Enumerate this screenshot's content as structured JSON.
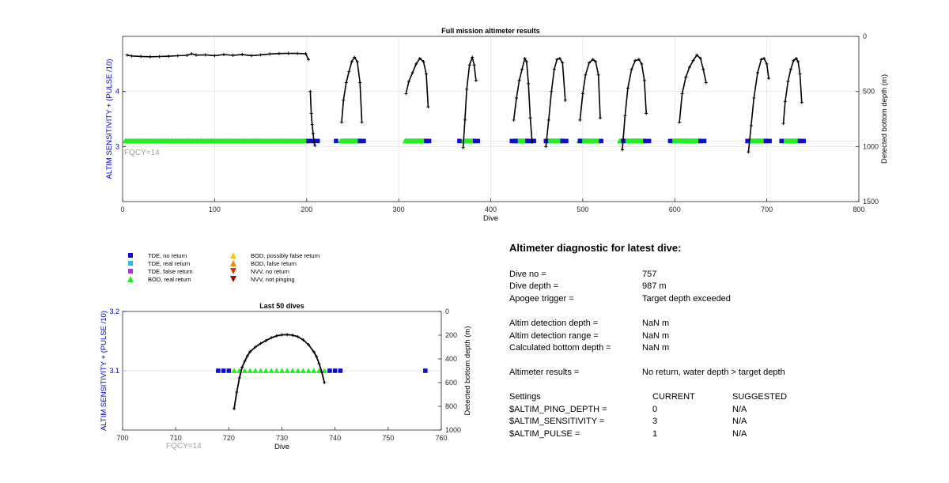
{
  "colors": {
    "tde_no_return": "#1010c8",
    "tde_real_return": "#19c9c9",
    "tde_false_return": "#a136d9",
    "bod_real_return": "#22ee22",
    "bod_possibly_false": "#f7c21b",
    "bod_false": "#f08c10",
    "nvv_no_return": "#e03010",
    "nvv_not_pinging": "#8b1010",
    "depth_line": "#000000",
    "left_axis": "#0000c0",
    "fqcy_text": "#a0a0a0"
  },
  "chart_data": [
    {
      "type": "line",
      "title": "Full mission altimeter results",
      "xlabel": "Dive",
      "ylabel_left": "ALTIM SENSITIVITY + (PULSE /10)",
      "ylabel_right": "Detected bottom depth (m)",
      "xlim": [
        0,
        800
      ],
      "ylim_left": [
        2,
        5
      ],
      "ylim_right": [
        1500,
        0
      ],
      "xticks": [
        "0",
        "100",
        "200",
        "300",
        "400",
        "500",
        "600",
        "700",
        "800"
      ],
      "yticks_left": [
        "3",
        "4"
      ],
      "yticks_right": [
        "0",
        "500",
        "1000",
        "1500"
      ],
      "annotation": "FQCY=14",
      "grid": true,
      "sensitivity_level": 3.1,
      "depth_segments": [
        {
          "x": [
            5,
            10,
            20,
            30,
            40,
            50,
            60,
            70,
            75,
            80,
            90,
            100,
            110,
            120,
            130,
            140,
            150,
            160,
            170,
            180,
            190,
            199,
            202
          ],
          "y": [
            170,
            178,
            182,
            185,
            183,
            180,
            176,
            172,
            158,
            170,
            168,
            175,
            165,
            172,
            164,
            175,
            168,
            160,
            156,
            154,
            155,
            158,
            210
          ]
        },
        {
          "x": [
            204,
            205,
            206,
            207,
            208,
            209
          ],
          "y": [
            500,
            700,
            800,
            880,
            960,
            990
          ]
        },
        {
          "x": [
            238,
            240,
            243,
            246,
            249,
            252,
            255,
            258,
            260
          ],
          "y": [
            780,
            580,
            420,
            320,
            230,
            190,
            230,
            420,
            780
          ]
        },
        {
          "x": [
            308,
            311,
            315,
            319,
            323,
            327,
            330,
            332
          ],
          "y": [
            520,
            410,
            330,
            250,
            200,
            230,
            340,
            640
          ]
        },
        {
          "x": [
            370,
            372,
            374,
            377,
            380,
            382,
            384
          ],
          "y": [
            1010,
            760,
            480,
            260,
            190,
            260,
            400
          ]
        },
        {
          "x": [
            425,
            428,
            431,
            434,
            437,
            439,
            441,
            443,
            445
          ],
          "y": [
            760,
            560,
            400,
            300,
            200,
            230,
            430,
            740,
            960
          ]
        },
        {
          "x": [
            460,
            463,
            466,
            469,
            472,
            475,
            478,
            481
          ],
          "y": [
            1000,
            760,
            500,
            300,
            210,
            200,
            240,
            580
          ]
        },
        {
          "x": [
            497,
            500,
            503,
            507,
            511,
            514,
            517,
            519
          ],
          "y": [
            760,
            520,
            350,
            240,
            210,
            230,
            350,
            740
          ]
        },
        {
          "x": [
            543,
            546,
            549,
            553,
            557,
            561,
            564,
            567,
            569
          ],
          "y": [
            1030,
            720,
            470,
            300,
            220,
            210,
            250,
            400,
            700
          ]
        },
        {
          "x": [
            605,
            608,
            612,
            616,
            620,
            624,
            628,
            631,
            634
          ],
          "y": [
            780,
            520,
            370,
            280,
            220,
            170,
            200,
            300,
            420
          ]
        },
        {
          "x": [
            680,
            683,
            686,
            690,
            694,
            697,
            700,
            702
          ],
          "y": [
            1050,
            810,
            560,
            330,
            210,
            200,
            250,
            380
          ]
        },
        {
          "x": [
            718,
            720,
            723,
            726,
            729,
            732,
            734,
            736,
            738
          ],
          "y": [
            790,
            590,
            410,
            300,
            220,
            200,
            230,
            340,
            600
          ]
        }
      ],
      "bod_real_ranges": [
        [
          3,
          200
        ],
        [
          237,
          260
        ],
        [
          307,
          330
        ],
        [
          370,
          383
        ],
        [
          425,
          442
        ],
        [
          461,
          480
        ],
        [
          496,
          517
        ],
        [
          540,
          568
        ],
        [
          598,
          628
        ],
        [
          680,
          701
        ],
        [
          718,
          737
        ]
      ],
      "tde_no_return_x": [
        202,
        205,
        208,
        212,
        232,
        258,
        262,
        330,
        333,
        366,
        383,
        386,
        423,
        427,
        440,
        444,
        447,
        460,
        478,
        482,
        497,
        520,
        544,
        568,
        572,
        595,
        628,
        632,
        679,
        699,
        703,
        716,
        736,
        740
      ]
    },
    {
      "type": "line",
      "title": "Last 50 dives",
      "xlabel": "Dive",
      "ylabel_left": "ALTIM SENSITIVITY + (PULSE /10)",
      "ylabel_right": "Detected bottom depth (m)",
      "xlim": [
        700,
        760
      ],
      "ylim_left": [
        3.0,
        3.2
      ],
      "ylim_right": [
        1000,
        0
      ],
      "xticks": [
        "700",
        "710",
        "720",
        "730",
        "740",
        "750",
        "760"
      ],
      "yticks_left": [
        "3.1",
        "3.2"
      ],
      "yticks_right": [
        "0",
        "200",
        "400",
        "600",
        "800",
        "1000"
      ],
      "annotation": "FQCY=14",
      "sensitivity_level": 3.1,
      "depth_series": {
        "x": [
          721,
          721.5,
          722,
          722.5,
          723,
          723.5,
          724,
          725,
          726,
          727,
          728,
          729,
          730,
          731,
          732,
          733,
          734,
          735,
          736,
          736.5,
          737,
          737.5,
          738
        ],
        "y": [
          820,
          680,
          560,
          470,
          420,
          375,
          340,
          300,
          270,
          245,
          222,
          206,
          197,
          195,
          200,
          213,
          240,
          280,
          340,
          380,
          440,
          510,
          600
        ]
      },
      "bod_real_x": [
        721,
        722,
        723,
        724,
        725,
        726,
        727,
        728,
        729,
        730,
        731,
        732,
        733,
        734,
        735,
        736,
        737,
        738
      ],
      "tde_no_return_x": [
        718,
        719,
        720,
        739,
        740,
        741,
        757
      ]
    }
  ],
  "legend": [
    {
      "label": "TDE, no return",
      "marker": "square",
      "color_key": "tde_no_return"
    },
    {
      "label": "TDE, real return",
      "marker": "square",
      "color_key": "tde_real_return"
    },
    {
      "label": "TDE, false return",
      "marker": "square",
      "color_key": "tde_false_return"
    },
    {
      "label": "BOD, real return",
      "marker": "triangle-up",
      "color_key": "bod_real_return"
    },
    {
      "label": "BOD, possibly false return",
      "marker": "triangle-up",
      "color_key": "bod_possibly_false"
    },
    {
      "label": "BOD, false return",
      "marker": "triangle-up",
      "color_key": "bod_false"
    },
    {
      "label": "NVV, no return",
      "marker": "triangle-down",
      "color_key": "nvv_no_return"
    },
    {
      "label": "NVV, not pinging",
      "marker": "triangle-down",
      "color_key": "nvv_not_pinging"
    }
  ],
  "diagnostic": {
    "title": "Altimeter diagnostic for latest dive:",
    "dive_no_label": "Dive no =",
    "dive_no": "757",
    "dive_depth_label": "Dive depth =",
    "dive_depth": "987 m",
    "apogee_label": "Apogee trigger =",
    "apogee": "Target depth exceeded",
    "altim_detection_depth_label": "Altim detection depth =",
    "altim_detection_depth": "NaN m",
    "altim_detection_range_label": "Altim detection range =",
    "altim_detection_range": "NaN m",
    "calc_bottom_depth_label": "Calculated bottom depth =",
    "calc_bottom_depth": "NaN m",
    "results_label": "Altimeter results =",
    "results": "No return, water depth > target depth",
    "settings_label": "Settings",
    "current_label": "CURRENT",
    "suggested_label": "SUGGESTED",
    "settings": [
      {
        "name": "$ALTIM_PING_DEPTH =",
        "current": "0",
        "suggested": "N/A"
      },
      {
        "name": "$ALTIM_SENSITIVITY =",
        "current": "3",
        "suggested": "N/A"
      },
      {
        "name": "$ALTIM_PULSE =",
        "current": "1",
        "suggested": "N/A"
      }
    ]
  }
}
